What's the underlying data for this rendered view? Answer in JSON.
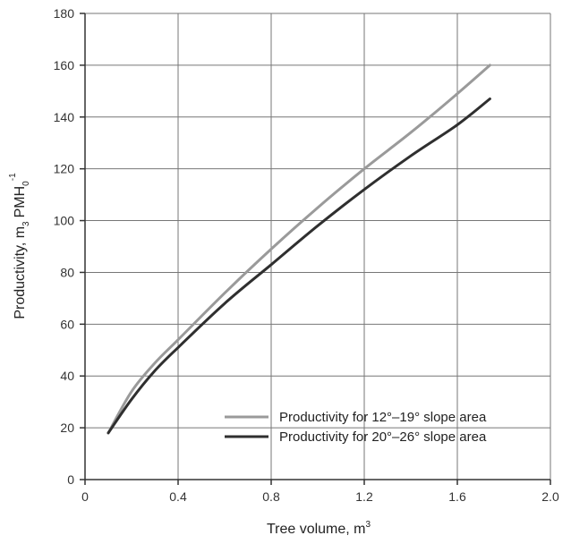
{
  "chart_data": {
    "type": "line",
    "title": "",
    "xlabel": "Tree volume, m",
    "xlabel_sup": "3",
    "ylabel": "Productivity, m",
    "ylabel_sub": "3",
    "ylabel_unit": "PMH",
    "ylabel_unit_sub": "0",
    "ylabel_unit_sup": "-1",
    "xlim": [
      0,
      2.0
    ],
    "ylim": [
      0,
      180
    ],
    "x_ticks": [
      "0",
      "0.4",
      "0.8",
      "1.2",
      "1.6",
      "2.0"
    ],
    "y_ticks": [
      "0",
      "20",
      "40",
      "60",
      "80",
      "100",
      "120",
      "140",
      "160",
      "180"
    ],
    "grid": true,
    "legend_position": "lower-right",
    "series": [
      {
        "name": "Productivity for 12°–19° slope area",
        "color": "#9a9a9a",
        "points": [
          [
            0.1,
            18
          ],
          [
            0.2,
            34
          ],
          [
            0.3,
            45
          ],
          [
            0.4,
            54
          ],
          [
            0.6,
            72
          ],
          [
            0.8,
            89
          ],
          [
            1.0,
            105
          ],
          [
            1.2,
            120
          ],
          [
            1.4,
            134
          ],
          [
            1.6,
            149
          ],
          [
            1.74,
            160
          ]
        ]
      },
      {
        "name": "Productivity for 20°–26° slope area",
        "color": "#2f2f2f",
        "points": [
          [
            0.1,
            18
          ],
          [
            0.2,
            31
          ],
          [
            0.3,
            42
          ],
          [
            0.4,
            51
          ],
          [
            0.6,
            68
          ],
          [
            0.8,
            83
          ],
          [
            1.0,
            98
          ],
          [
            1.2,
            112
          ],
          [
            1.4,
            125
          ],
          [
            1.6,
            137
          ],
          [
            1.74,
            147
          ]
        ]
      }
    ]
  }
}
